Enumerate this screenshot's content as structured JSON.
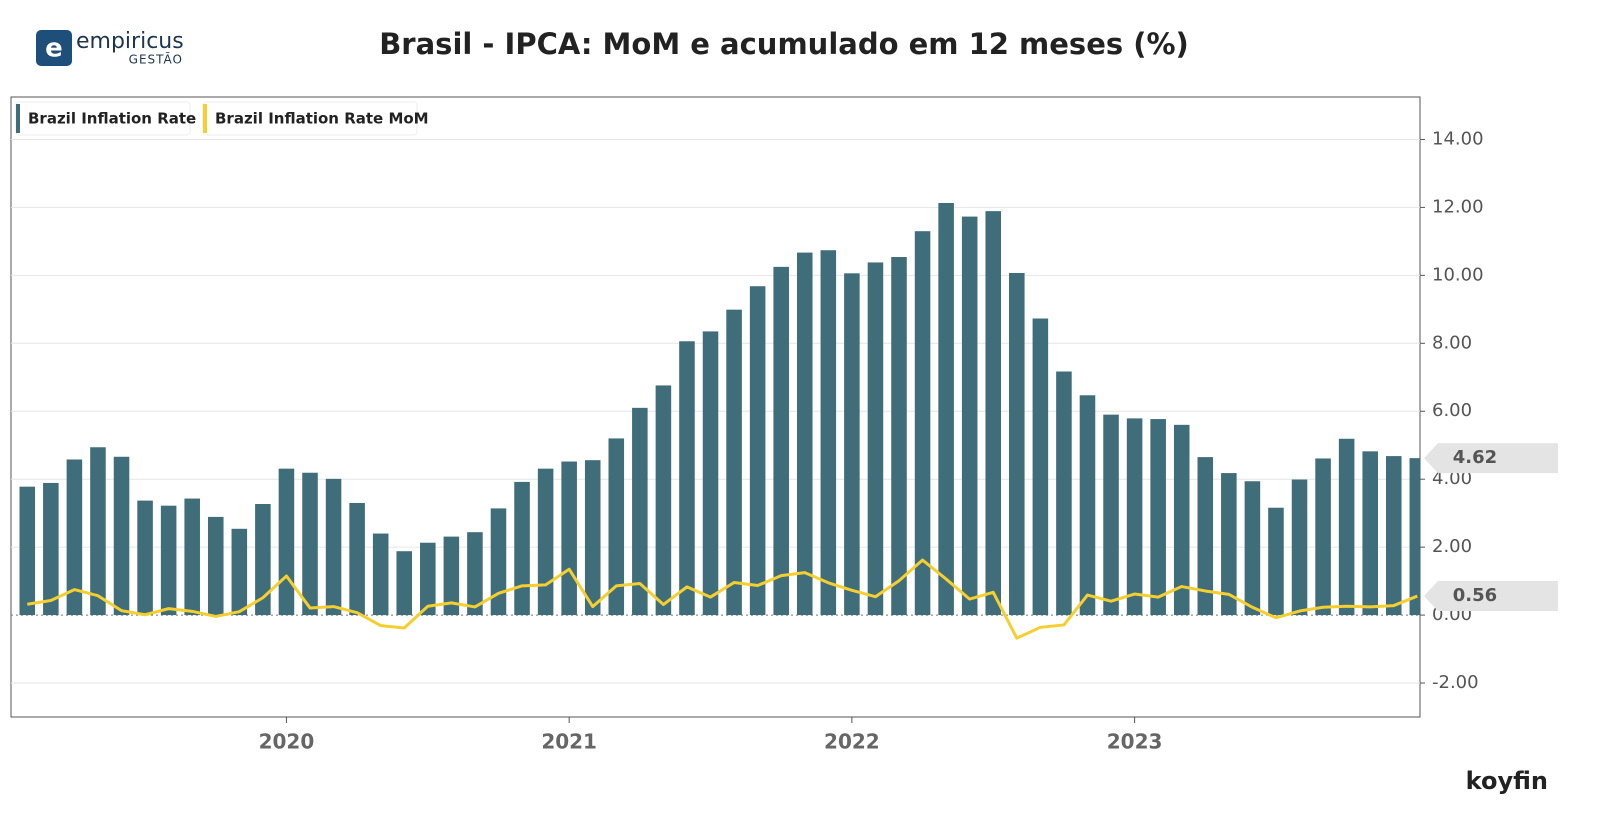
{
  "logo": {
    "name": "empiricus",
    "sub": "GESTÃO"
  },
  "source": "koyfin",
  "chart_data": {
    "type": "bar_line",
    "title": "Brasil - IPCA: MoM e acumulado em 12 meses (%)",
    "categories": [
      null,
      null,
      null,
      null,
      null,
      null,
      null,
      null,
      null,
      null,
      null,
      null,
      "2020",
      null,
      null,
      null,
      null,
      null,
      null,
      null,
      null,
      null,
      null,
      null,
      "2021",
      null,
      null,
      null,
      null,
      null,
      null,
      null,
      null,
      null,
      null,
      null,
      "2022",
      null,
      null,
      null,
      null,
      null,
      null,
      null,
      null,
      null,
      null,
      null,
      "2023",
      null,
      null,
      null,
      null,
      null,
      null,
      null,
      null,
      null,
      null,
      null
    ],
    "series": [
      {
        "name": "Brazil Inflation Rate",
        "color": "#3f6d79",
        "type": "bar",
        "values": [
          3.78,
          3.89,
          4.58,
          4.94,
          4.66,
          3.37,
          3.22,
          3.43,
          2.89,
          2.54,
          3.27,
          4.31,
          4.19,
          4.01,
          3.3,
          2.4,
          1.88,
          2.13,
          2.31,
          2.44,
          3.14,
          3.92,
          4.31,
          4.52,
          4.56,
          5.2,
          6.1,
          6.76,
          8.06,
          8.35,
          8.99,
          9.68,
          10.25,
          10.67,
          10.74,
          10.06,
          10.38,
          10.54,
          11.3,
          12.13,
          11.73,
          11.89,
          10.07,
          8.73,
          7.17,
          6.47,
          5.9,
          5.79,
          5.77,
          5.6,
          4.65,
          4.18,
          3.94,
          3.16,
          3.99,
          4.61,
          5.19,
          4.82,
          4.68,
          4.62
        ]
      },
      {
        "name": "Brazil Inflation Rate MoM",
        "color": "#f5cf2f",
        "type": "line",
        "values": [
          0.32,
          0.43,
          0.75,
          0.57,
          0.13,
          0.01,
          0.19,
          0.11,
          -0.04,
          0.1,
          0.51,
          1.15,
          0.21,
          0.25,
          0.07,
          -0.31,
          -0.38,
          0.26,
          0.36,
          0.24,
          0.64,
          0.86,
          0.89,
          1.35,
          0.25,
          0.86,
          0.93,
          0.31,
          0.83,
          0.53,
          0.96,
          0.87,
          1.16,
          1.25,
          0.95,
          0.73,
          0.54,
          1.01,
          1.62,
          1.06,
          0.47,
          0.67,
          -0.68,
          -0.36,
          -0.29,
          0.59,
          0.41,
          0.62,
          0.53,
          0.84,
          0.71,
          0.61,
          0.23,
          -0.08,
          0.12,
          0.23,
          0.26,
          0.24,
          0.28,
          0.56
        ]
      }
    ],
    "ylim": [
      -3,
      15.25
    ],
    "yticks": [
      {
        "value": -2,
        "label": "-2.00"
      },
      {
        "value": 0,
        "label": "0.00"
      },
      {
        "value": 2,
        "label": "2.00"
      },
      {
        "value": 4,
        "label": "4.00"
      },
      {
        "value": 6,
        "label": "6.00"
      },
      {
        "value": 8,
        "label": "8.00"
      },
      {
        "value": 10,
        "label": "10.00"
      },
      {
        "value": 12,
        "label": "12.00"
      },
      {
        "value": 14,
        "label": "14.00"
      }
    ],
    "grid": true
  }
}
